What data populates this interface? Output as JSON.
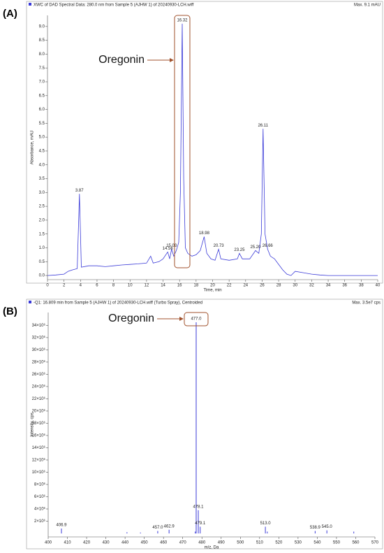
{
  "chart_data": [
    {
      "type": "line",
      "panel": "(A)",
      "title": "XWC of DAD Spectral Data: 280.0 nm from Sample 5 (AJHW 1) of 20240930-LCH.wiff",
      "subtitle": "Max. 9.1 mAU",
      "x_label": "Time, min",
      "y_label": "Absorbance, mAU",
      "color": "#3a3ad8",
      "x": [
        0,
        1,
        2,
        2.5,
        3,
        3.6,
        3.87,
        4.1,
        5,
        6,
        7,
        8,
        9,
        10,
        11,
        12,
        12.5,
        12.8,
        13.5,
        14,
        14.56,
        14.8,
        15.03,
        15.3,
        15.6,
        15.9,
        16.1,
        16.32,
        16.5,
        16.7,
        17,
        17.5,
        18,
        18.5,
        18.98,
        19.3,
        19.8,
        20.3,
        20.73,
        21,
        22,
        23,
        23.25,
        23.6,
        24.5,
        25.2,
        25.6,
        25.9,
        26.11,
        26.35,
        26.66,
        27,
        27.5,
        28,
        28.5,
        29,
        29.5,
        30,
        31,
        32,
        33,
        34,
        35,
        36,
        37,
        38,
        39,
        40
      ],
      "values": [
        0,
        0.02,
        0.05,
        0.15,
        0.2,
        0.25,
        2.95,
        0.3,
        0.35,
        0.35,
        0.32,
        0.35,
        0.38,
        0.4,
        0.42,
        0.45,
        0.7,
        0.45,
        0.5,
        0.6,
        0.85,
        0.6,
        0.95,
        0.7,
        0.9,
        1.2,
        3.0,
        9.1,
        3.5,
        1.0,
        0.8,
        0.7,
        0.75,
        0.9,
        1.4,
        0.8,
        0.6,
        0.55,
        0.95,
        0.6,
        0.55,
        0.6,
        0.8,
        0.6,
        0.6,
        0.9,
        0.8,
        1.5,
        5.3,
        1.5,
        0.95,
        0.7,
        0.6,
        0.4,
        0.2,
        0.05,
        0,
        0.15,
        0.1,
        0.05,
        0.02,
        0,
        0,
        0,
        0,
        0,
        0,
        0
      ],
      "peak_labels": [
        "3.87",
        "14.56",
        "15.03",
        "16.32",
        "18.98",
        "20.73",
        "23.25",
        "25.20",
        "26.11",
        "26.66"
      ],
      "xlim": [
        0,
        40
      ],
      "ylim": [
        -0.15,
        9.4
      ],
      "xticks": [
        0,
        2,
        4,
        6,
        8,
        10,
        12,
        14,
        16,
        18,
        20,
        22,
        24,
        26,
        28,
        30,
        32,
        34,
        36,
        38,
        40
      ],
      "yticks": [
        {
          "value": 0,
          "label": "0.0"
        },
        0.5,
        {
          "value": 1,
          "label": "1.0"
        },
        1.5,
        {
          "value": 2,
          "label": "2.0"
        },
        2.5,
        {
          "value": 3,
          "label": "3.0"
        },
        3.5,
        {
          "value": 4,
          "label": "4.0"
        },
        4.5,
        {
          "value": 5,
          "label": "5.0"
        },
        5.5,
        {
          "value": 6,
          "label": "6.0"
        },
        6.5,
        {
          "value": 7,
          "label": "7.0"
        },
        7.5,
        {
          "value": 8,
          "label": "8.0"
        },
        8.5,
        {
          "value": 9,
          "label": "9.0"
        }
      ],
      "annotation": "Oregonin"
    },
    {
      "type": "bar",
      "panel": "(B)",
      "title": "-Q1: 16.809 min from Sample 5 (AJHW 1) of 20240930-LCH.wiff (Turbo Spray), Centroided",
      "subtitle": "Max. 3.5e7 cps",
      "x_label": "m/z, Da",
      "y_label": "Intensity, cps",
      "color": "#3a3ad8",
      "x": [
        406.9,
        441,
        448,
        457.0,
        462.9,
        476.5,
        477.0,
        478.1,
        479.1,
        513.0,
        514,
        538.9,
        545.0,
        559
      ],
      "values": [
        800000,
        200000,
        150000,
        400000,
        600000,
        300000,
        34500000,
        3800000,
        1100000,
        1100000,
        300000,
        400000,
        500000,
        300000
      ],
      "labels": [
        "406.9",
        null,
        null,
        "457.0",
        "462.9",
        null,
        "477.0",
        "478.1",
        "479.1",
        "513.0",
        null,
        "538.9",
        "545.0",
        null
      ],
      "xlim": [
        400,
        570
      ],
      "ylim": [
        -570000,
        36100000
      ],
      "xticks": [
        400,
        410,
        420,
        430,
        440,
        450,
        460,
        470,
        480,
        490,
        500,
        510,
        520,
        530,
        540,
        550,
        560,
        570
      ],
      "yticks": [
        {
          "value": 2000000,
          "label": "2×10⁶"
        },
        {
          "value": 4000000,
          "label": "4×10⁶"
        },
        {
          "value": 6000000,
          "label": "6×10⁶"
        },
        {
          "value": 8000000,
          "label": "8×10⁶"
        },
        {
          "value": 10000000,
          "label": "10×10⁶"
        },
        {
          "value": 12000000,
          "label": "12×10⁶"
        },
        {
          "value": 14000000,
          "label": "14×10⁶"
        },
        {
          "value": 16000000,
          "label": "16×10⁶"
        },
        {
          "value": 18000000,
          "label": "18×10⁶"
        },
        {
          "value": 20000000,
          "label": "20×10⁶"
        },
        {
          "value": 22000000,
          "label": "22×10⁶"
        },
        {
          "value": 24000000,
          "label": "24×10⁶"
        },
        {
          "value": 26000000,
          "label": "26×10⁶"
        },
        {
          "value": 28000000,
          "label": "28×10⁶"
        },
        {
          "value": 30000000,
          "label": "30×10⁶"
        },
        {
          "value": 32000000,
          "label": "32×10⁶"
        },
        {
          "value": 34000000,
          "label": "34×10⁶"
        }
      ],
      "annotation": "Oregonin"
    }
  ]
}
